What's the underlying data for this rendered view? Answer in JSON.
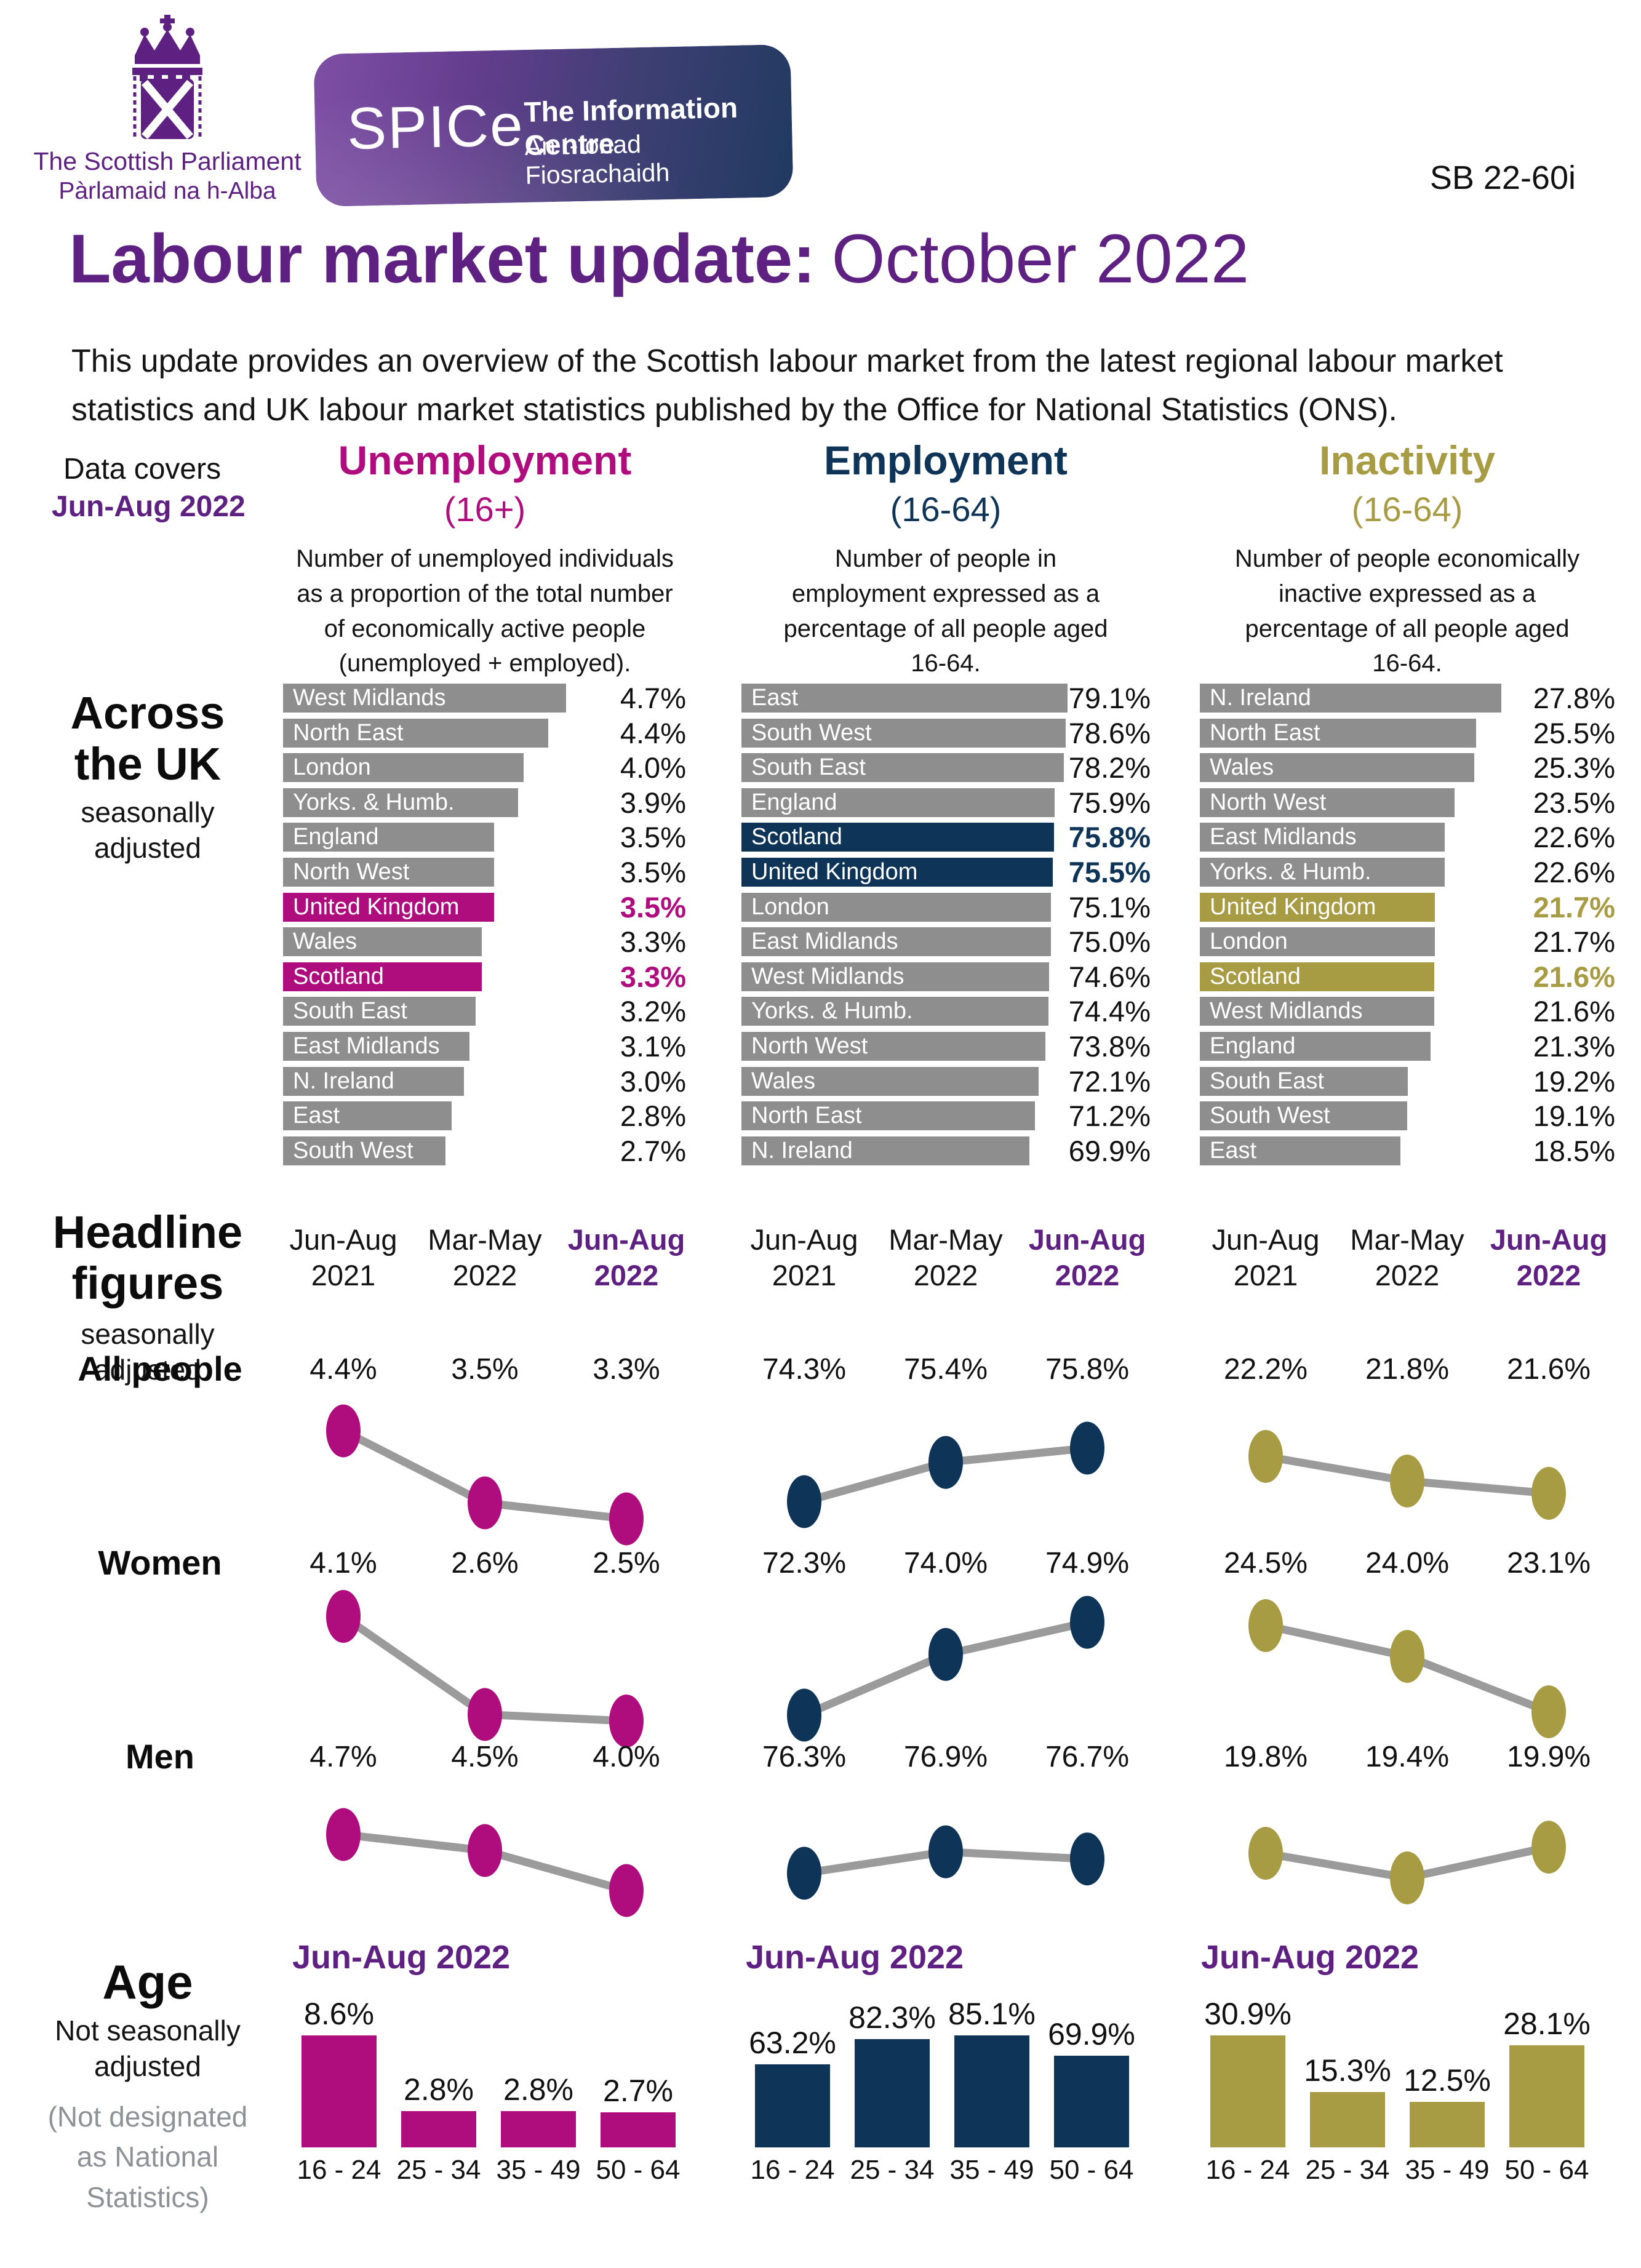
{
  "header": {
    "parliament": {
      "name_en": "The Scottish Parliament",
      "name_gd": "Pàrlamaid na h-Alba"
    },
    "spice": {
      "acronym": "SPICe",
      "name_en": "The Information Centre",
      "name_gd": "An t-Ionad Fiosrachaidh"
    },
    "bulletin_ref": "SB 22-60i"
  },
  "title": {
    "bold": "Labour market update:",
    "regular": "October 2022"
  },
  "intro": "This update provides an overview of the Scottish labour market from the latest regional labour market statistics and UK labour market statistics published by the Office for National Statistics (ONS).",
  "data_covers": {
    "label": "Data covers",
    "period": "Jun-Aug 2022"
  },
  "sections": {
    "across_uk": {
      "title": "Across the UK",
      "subtitle": "seasonally adjusted"
    },
    "headline": {
      "title": "Headline figures",
      "subtitle": "seasonally adjusted",
      "row_labels": [
        "All people",
        "Women",
        "Men"
      ],
      "periods": [
        {
          "label": "Jun-Aug 2021",
          "highlight": false
        },
        {
          "label": "Mar-May 2022",
          "highlight": false
        },
        {
          "label": "Jun-Aug 2022",
          "highlight": true
        }
      ]
    },
    "age": {
      "title": "Age",
      "subtitle": "Not seasonally adjusted",
      "note": "(Not designated as National Statistics)",
      "period_label": "Jun-Aug 2022",
      "categories": [
        "16 - 24",
        "25 - 34",
        "35 - 49",
        "50 - 64"
      ]
    }
  },
  "metrics": [
    {
      "name": "Unemployment",
      "age_range": "(16+)",
      "color": "#af0d7e",
      "description": "Number of unemployed individuals as a proportion of the total number of economically active people (unemployed + employed)."
    },
    {
      "name": "Employment",
      "age_range": "(16-64)",
      "color": "#0e3457",
      "description": "Number of people in employment expressed as a percentage of all people aged 16-64."
    },
    {
      "name": "Inactivity",
      "age_range": "(16-64)",
      "color": "#a79b43",
      "description": "Number of people economically inactive expressed as a percentage of all people aged 16-64."
    }
  ],
  "chart_data": [
    {
      "id": "uk-unemployment",
      "type": "bar",
      "orientation": "horizontal",
      "unit": "%",
      "title": "Unemployment (16+) across the UK, seasonally adjusted",
      "categories": [
        "West Midlands",
        "North East",
        "London",
        "Yorks. & Humb.",
        "England",
        "North West",
        "United Kingdom",
        "Wales",
        "Scotland",
        "South East",
        "East Midlands",
        "N. Ireland",
        "East",
        "South West"
      ],
      "values": [
        4.7,
        4.4,
        4.0,
        3.9,
        3.5,
        3.5,
        3.5,
        3.3,
        3.3,
        3.2,
        3.1,
        3.0,
        2.8,
        2.7
      ],
      "highlight_categories": [
        "United Kingdom",
        "Scotland"
      ]
    },
    {
      "id": "uk-employment",
      "type": "bar",
      "orientation": "horizontal",
      "unit": "%",
      "title": "Employment (16-64) across the UK, seasonally adjusted",
      "categories": [
        "East",
        "South West",
        "South East",
        "England",
        "Scotland",
        "United Kingdom",
        "London",
        "East Midlands",
        "West Midlands",
        "Yorks. & Humb.",
        "North West",
        "Wales",
        "North East",
        "N. Ireland"
      ],
      "values": [
        79.1,
        78.6,
        78.2,
        75.9,
        75.8,
        75.5,
        75.1,
        75.0,
        74.6,
        74.4,
        73.8,
        72.1,
        71.2,
        69.9
      ],
      "highlight_categories": [
        "Scotland",
        "United Kingdom"
      ]
    },
    {
      "id": "uk-inactivity",
      "type": "bar",
      "orientation": "horizontal",
      "unit": "%",
      "title": "Inactivity (16-64) across the UK, seasonally adjusted",
      "categories": [
        "N. Ireland",
        "North East",
        "Wales",
        "North West",
        "East Midlands",
        "Yorks. & Humb.",
        "United Kingdom",
        "London",
        "Scotland",
        "West Midlands",
        "England",
        "South East",
        "South West",
        "East"
      ],
      "values": [
        27.8,
        25.5,
        25.3,
        23.5,
        22.6,
        22.6,
        21.7,
        21.7,
        21.6,
        21.6,
        21.3,
        19.2,
        19.1,
        18.5
      ],
      "highlight_categories": [
        "United Kingdom",
        "Scotland"
      ]
    },
    {
      "id": "headline-unemployment",
      "type": "line",
      "unit": "%",
      "title": "Unemployment (16+) headline figures, seasonally adjusted",
      "x": [
        "Jun-Aug 2021",
        "Mar-May 2022",
        "Jun-Aug 2022"
      ],
      "series": [
        {
          "name": "All people",
          "values": [
            4.4,
            3.5,
            3.3
          ]
        },
        {
          "name": "Women",
          "values": [
            4.1,
            2.6,
            2.5
          ]
        },
        {
          "name": "Men",
          "values": [
            4.7,
            4.5,
            4.0
          ]
        }
      ]
    },
    {
      "id": "headline-employment",
      "type": "line",
      "unit": "%",
      "title": "Employment (16-64) headline figures, seasonally adjusted",
      "x": [
        "Jun-Aug 2021",
        "Mar-May 2022",
        "Jun-Aug 2022"
      ],
      "series": [
        {
          "name": "All people",
          "values": [
            74.3,
            75.4,
            75.8
          ]
        },
        {
          "name": "Women",
          "values": [
            72.3,
            74.0,
            74.9
          ]
        },
        {
          "name": "Men",
          "values": [
            76.3,
            76.9,
            76.7
          ]
        }
      ]
    },
    {
      "id": "headline-inactivity",
      "type": "line",
      "unit": "%",
      "title": "Inactivity (16-64) headline figures, seasonally adjusted",
      "x": [
        "Jun-Aug 2021",
        "Mar-May 2022",
        "Jun-Aug 2022"
      ],
      "series": [
        {
          "name": "All people",
          "values": [
            22.2,
            21.8,
            21.6
          ]
        },
        {
          "name": "Women",
          "values": [
            24.5,
            24.0,
            23.1
          ]
        },
        {
          "name": "Men",
          "values": [
            19.8,
            19.4,
            19.9
          ]
        }
      ]
    },
    {
      "id": "age-unemployment",
      "type": "bar",
      "orientation": "vertical",
      "unit": "%",
      "title": "Unemployment by age, Jun-Aug 2022, not seasonally adjusted",
      "categories": [
        "16 - 24",
        "25 - 34",
        "35 - 49",
        "50 - 64"
      ],
      "values": [
        8.6,
        2.8,
        2.8,
        2.7
      ]
    },
    {
      "id": "age-employment",
      "type": "bar",
      "orientation": "vertical",
      "unit": "%",
      "title": "Employment by age, Jun-Aug 2022, not seasonally adjusted",
      "categories": [
        "16 - 24",
        "25 - 34",
        "35 - 49",
        "50 - 64"
      ],
      "values": [
        63.2,
        82.3,
        85.1,
        69.9
      ]
    },
    {
      "id": "age-inactivity",
      "type": "bar",
      "orientation": "vertical",
      "unit": "%",
      "title": "Inactivity by age, Jun-Aug 2022, not seasonally adjusted",
      "categories": [
        "16 - 24",
        "25 - 34",
        "35 - 49",
        "50 - 64"
      ],
      "values": [
        30.9,
        15.3,
        12.5,
        28.1
      ]
    }
  ],
  "colors": {
    "purple": "#5e2181",
    "bar_gray": "#8e8e8e",
    "connector_gray": "#9b9b9b",
    "note_gray": "#8d9297",
    "magenta": "#af0d7e",
    "navy": "#0e3457",
    "olive": "#a79b43"
  }
}
